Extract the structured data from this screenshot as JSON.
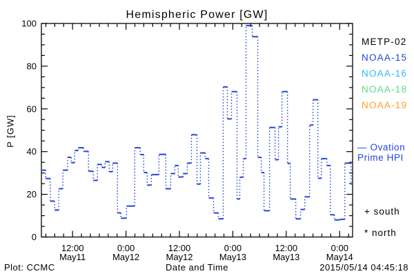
{
  "title": "Hemispheric Power [GW]",
  "colors": {
    "background": "#ffffff",
    "title": "#0d4747",
    "axis": "#000000",
    "line": "#2244dd"
  },
  "legend": {
    "satellites": [
      {
        "label": "METP-02",
        "color": "#000000"
      },
      {
        "label": "NOAA-15",
        "color": "#2244dd"
      },
      {
        "label": "NOAA-16",
        "color": "#2fb7f7"
      },
      {
        "label": "NOAA-18",
        "color": "#57dc82"
      },
      {
        "label": "NOAA-19",
        "color": "#ff9d26"
      }
    ],
    "ovation": {
      "symbol": "—",
      "line1": "Ovation",
      "line2": "Prime HPI",
      "color": "#2244dd"
    },
    "markers": {
      "south": "+ south",
      "north": "* north"
    }
  },
  "footer": {
    "plot_credit": "Plot: CCMC",
    "timestamp": "2015/05/14 04:45:18"
  },
  "chart_data": {
    "type": "line",
    "title": "Hemispheric Power [GW]",
    "xlabel": "Date and Time",
    "ylabel": "P [GW]",
    "ylim": [
      0,
      100
    ],
    "y_major_step": 20,
    "y_minor_step": 5,
    "grid": false,
    "legend_position": "right-outside",
    "x_unit": "hours since 2015-05-11 00:00 UT",
    "xlim": [
      5.0,
      74.9
    ],
    "x_minor_step": 2,
    "x_major_ticks": [
      {
        "h": 12,
        "time": "12:00",
        "date": "May11"
      },
      {
        "h": 24,
        "time": "0:00",
        "date": "May12"
      },
      {
        "h": 36,
        "time": "12:00",
        "date": "May12"
      },
      {
        "h": 48,
        "time": "0:00",
        "date": "May13"
      },
      {
        "h": 60,
        "time": "12:00",
        "date": "May13"
      },
      {
        "h": 72,
        "time": "0:00",
        "date": "May14"
      }
    ],
    "series": [
      {
        "name": "Ovation Prime HPI",
        "color": "#2244dd",
        "style": "step plot: solid horizontal segments, dotted vertical connectors",
        "points": [
          [
            5.0,
            31.3
          ],
          [
            5.95,
            27.4
          ],
          [
            7.0,
            16.8
          ],
          [
            7.96,
            12.6
          ],
          [
            8.9,
            22.6
          ],
          [
            9.83,
            31.3
          ],
          [
            10.91,
            37.3
          ],
          [
            11.69,
            34.8
          ],
          [
            12.47,
            40.5
          ],
          [
            13.24,
            41.8
          ],
          [
            14.48,
            40.1
          ],
          [
            15.57,
            30.8
          ],
          [
            16.66,
            26.5
          ],
          [
            17.59,
            34.0
          ],
          [
            18.52,
            32.6
          ],
          [
            19.3,
            35.3
          ],
          [
            20.23,
            30.6
          ],
          [
            21.0,
            34.6
          ],
          [
            22.09,
            11.3
          ],
          [
            22.87,
            8.8
          ],
          [
            24.11,
            14.5
          ],
          [
            25.97,
            41.8
          ],
          [
            27.21,
            38.6
          ],
          [
            27.99,
            30.2
          ],
          [
            28.76,
            24.3
          ],
          [
            29.7,
            29.2
          ],
          [
            31.4,
            38.7
          ],
          [
            32.95,
            22.6
          ],
          [
            34.04,
            29.7
          ],
          [
            34.97,
            33.5
          ],
          [
            35.75,
            28.1
          ],
          [
            36.83,
            29.7
          ],
          [
            37.77,
            34.6
          ],
          [
            38.7,
            47.9
          ],
          [
            39.94,
            24.8
          ],
          [
            40.72,
            39.4
          ],
          [
            41.8,
            36.7
          ],
          [
            42.58,
            18.3
          ],
          [
            43.67,
            11.3
          ],
          [
            44.75,
            8.5
          ],
          [
            45.84,
            70.3
          ],
          [
            46.77,
            55.3
          ],
          [
            47.7,
            68.1
          ],
          [
            48.94,
            17.8
          ],
          [
            49.56,
            28.0
          ],
          [
            50.34,
            36.7
          ],
          [
            50.96,
            99.0
          ],
          [
            52.36,
            93.8
          ],
          [
            53.6,
            37.3
          ],
          [
            54.38,
            30.2
          ],
          [
            55.0,
            12.3
          ],
          [
            56.24,
            51.3
          ],
          [
            57.48,
            36.2
          ],
          [
            58.26,
            51.6
          ],
          [
            59.03,
            68.1
          ],
          [
            60.28,
            34.5
          ],
          [
            60.9,
            17.8
          ],
          [
            62.14,
            8.5
          ],
          [
            63.22,
            12.9
          ],
          [
            64.15,
            18.8
          ],
          [
            65.24,
            52.4
          ],
          [
            66.02,
            64.3
          ],
          [
            67.1,
            27.5
          ],
          [
            67.88,
            36.7
          ],
          [
            69.12,
            33.5
          ],
          [
            69.9,
            10.4
          ],
          [
            70.83,
            8.0
          ],
          [
            72.07,
            8.3
          ],
          [
            73.16,
            34.6
          ],
          [
            74.55,
            24.8
          ]
        ]
      }
    ]
  }
}
